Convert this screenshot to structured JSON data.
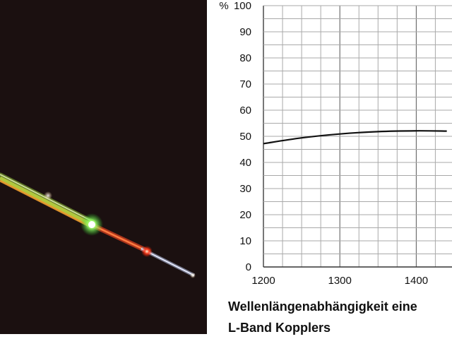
{
  "chart_data": {
    "type": "line",
    "x": [
      1200,
      1250,
      1300,
      1350,
      1400,
      1440
    ],
    "series": [
      {
        "values": [
          47.2,
          49.4,
          50.9,
          51.8,
          52.1,
          52.0
        ]
      }
    ],
    "ylabel": "%",
    "xlim": [
      1200,
      1440
    ],
    "ylim": [
      0,
      100
    ],
    "x_ticks": [
      1200,
      1300,
      1400
    ],
    "y_ticks": [
      0,
      10,
      20,
      30,
      40,
      50,
      60,
      70,
      80,
      90,
      100
    ],
    "grid": true,
    "line_color": "#111111",
    "grid_color": "#a9a9a9",
    "caption": [
      "Wellenlängenabhängigkeit eine",
      "L-Band Kopplers"
    ]
  },
  "photo": {
    "description_icon": "optical-fiber-glow-photo"
  }
}
